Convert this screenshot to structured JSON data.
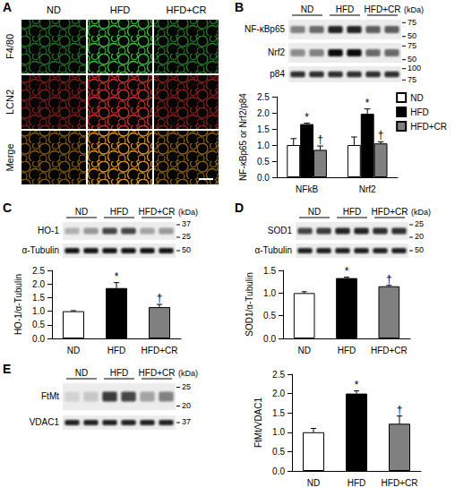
{
  "chart_data": [
    {
      "type": "bar",
      "categories": [
        "NFkB",
        "Nrf2"
      ],
      "series": [
        {
          "name": "ND",
          "color": "#ffffff",
          "values": [
            1.0,
            1.0
          ],
          "errors": [
            0.2,
            0.25
          ],
          "annotations": [
            null,
            null
          ]
        },
        {
          "name": "HFD",
          "color": "#000000",
          "values": [
            1.65,
            1.97
          ],
          "errors": [
            0.03,
            0.15
          ],
          "annotations": [
            "*",
            "*"
          ]
        },
        {
          "name": "HFD+CR",
          "color": "#808080",
          "values": [
            0.85,
            1.05
          ],
          "errors": [
            0.12,
            0.05
          ],
          "annotations": [
            "†",
            "†"
          ]
        }
      ],
      "y_label": "NF-κBp65 or Nrf2/p84",
      "ylim": [
        0,
        2.5
      ],
      "yticks": [
        {
          "value": 0,
          "label": "0.0"
        },
        0.5,
        {
          "value": 1,
          "label": "1.0"
        },
        1.5,
        {
          "value": 2,
          "label": "2.0"
        },
        2.5
      ],
      "grid": false,
      "legend": "top-right"
    },
    {
      "type": "bar",
      "categories": [
        "ND",
        "HFD",
        "HFD+CR"
      ],
      "values": [
        1.0,
        1.85,
        1.15
      ],
      "errors": [
        0.02,
        0.2,
        0.1
      ],
      "annotations": [
        null,
        "*",
        "†"
      ],
      "colors": [
        "#ffffff",
        "#000000",
        "#808080"
      ],
      "y_label": "HO-1/α-Tubulin",
      "ylim": [
        0,
        2.5
      ],
      "yticks": [
        {
          "value": 0,
          "label": "0.0"
        },
        0.5,
        {
          "value": 1,
          "label": "1.0"
        },
        1.5,
        {
          "value": 2,
          "label": "2.0"
        },
        2.5
      ],
      "grid": false
    },
    {
      "type": "bar",
      "categories": [
        "ND",
        "HFD",
        "HFD+CR"
      ],
      "values": [
        1.0,
        1.33,
        1.15
      ],
      "errors": [
        0.03,
        0.02,
        0.02
      ],
      "annotations": [
        null,
        "*",
        "†"
      ],
      "colors": [
        "#ffffff",
        "#000000",
        "#808080"
      ],
      "y_label": "SOD1/α-Tubulin",
      "ylim": [
        0,
        1.5
      ],
      "yticks": [
        {
          "value": 0,
          "label": "0.0"
        },
        0.5,
        {
          "value": 1,
          "label": "1.0"
        },
        1.5
      ],
      "grid": false
    },
    {
      "type": "bar",
      "categories": [
        "ND",
        "HFD",
        "HFD+CR"
      ],
      "values": [
        1.0,
        2.0,
        1.22
      ],
      "errors": [
        0.1,
        0.07,
        0.2
      ],
      "annotations": [
        null,
        "*",
        "†"
      ],
      "colors": [
        "#ffffff",
        "#000000",
        "#808080"
      ],
      "y_label": "FtMt/VDAC1",
      "ylim": [
        0,
        2.5
      ],
      "yticks": [
        {
          "value": 0,
          "label": "0.0"
        },
        0.5,
        {
          "value": 1,
          "label": "1.0"
        },
        1.5,
        {
          "value": 2,
          "label": "2.0"
        },
        2.5
      ],
      "grid": false
    }
  ],
  "figure": {
    "panels": [
      {
        "letter": "A",
        "columns": [
          "ND",
          "HFD",
          "HFD+CR"
        ],
        "rows": [
          "F4/80",
          "LCN2",
          "Merge"
        ]
      },
      {
        "letter": "B",
        "blot": {
          "groups": [
            "ND",
            "HFD",
            "HFD+CR"
          ],
          "unit": "(kDa)",
          "rows": [
            {
              "label": "NF-κBp65",
              "markers": [
                75,
                50
              ],
              "bands": [
                0.45,
                0.55,
                0.85,
                0.85,
                0.6,
                0.6
              ]
            },
            {
              "label": "Nrf2",
              "markers": [
                75,
                50
              ],
              "bands": [
                0.4,
                0.45,
                0.95,
                0.95,
                0.55,
                0.55
              ]
            },
            {
              "label": "p84",
              "markers": [
                100,
                75
              ],
              "bands": [
                0.8,
                0.8,
                0.8,
                0.8,
                0.8,
                0.8
              ]
            }
          ]
        }
      },
      {
        "letter": "C",
        "blot": {
          "groups": [
            "ND",
            "HFD",
            "HFD+CR"
          ],
          "unit": "(kDa)",
          "rows": [
            {
              "label": "HO-1",
              "markers": [
                37,
                25
              ],
              "bands": [
                0.25,
                0.35,
                0.7,
                0.7,
                0.3,
                0.35
              ]
            },
            {
              "label": "α-Tubulin",
              "markers": [
                50
              ],
              "bands": [
                0.9,
                0.9,
                0.9,
                0.9,
                0.9,
                0.9
              ]
            }
          ]
        }
      },
      {
        "letter": "D",
        "blot": {
          "groups": [
            "ND",
            "HFD",
            "HFD+CR"
          ],
          "unit": "(kDa)",
          "rows": [
            {
              "label": "SOD1",
              "markers": [
                25,
                20
              ],
              "bands": [
                0.7,
                0.75,
                0.85,
                0.85,
                0.8,
                0.8
              ]
            },
            {
              "label": "α-Tubulin",
              "markers": [
                50
              ],
              "bands": [
                0.85,
                0.85,
                0.85,
                0.85,
                0.85,
                0.85
              ]
            }
          ]
        }
      },
      {
        "letter": "E",
        "blot": {
          "groups": [
            "ND",
            "HFD",
            "HFD+CR"
          ],
          "unit": "(kDa)",
          "rows": [
            {
              "label": "FtMt",
              "markers": [
                25,
                20
              ],
              "bands": [
                0.1,
                0.15,
                0.75,
                0.7,
                0.3,
                0.45
              ]
            },
            {
              "label": "VDAC1",
              "markers": [
                37
              ],
              "bands": [
                0.85,
                0.85,
                0.85,
                0.85,
                0.85,
                0.85
              ]
            }
          ]
        }
      }
    ]
  }
}
